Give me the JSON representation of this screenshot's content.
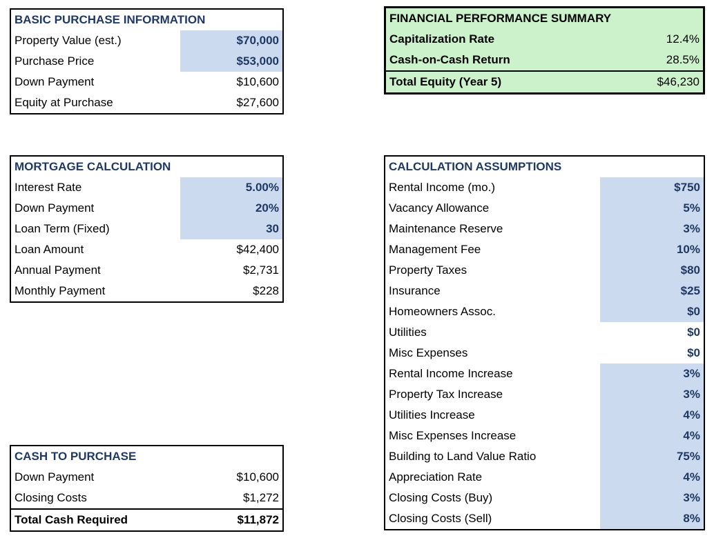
{
  "colors": {
    "navy_text": "#1f3864",
    "input_highlight_blue": "#cbdaee",
    "summary_green": "#ccf2cc",
    "border_black": "#000000"
  },
  "panels": {
    "basic_purchase": {
      "title": "BASIC PURCHASE INFORMATION",
      "rows": [
        {
          "label": "Property Value (est.)",
          "value": "$70,000",
          "highlight": true
        },
        {
          "label": "Purchase Price",
          "value": "$53,000",
          "highlight": true
        },
        {
          "label": "Down Payment",
          "value": "$10,600"
        },
        {
          "label": "Equity at Purchase",
          "value": "$27,600"
        }
      ]
    },
    "financial_summary": {
      "title": "FINANCIAL PERFORMANCE SUMMARY",
      "rows": [
        {
          "label": "Capitalization Rate",
          "value": "12.4%",
          "label_bold": true
        },
        {
          "label": "Cash-on-Cash Return",
          "value": "28.5%",
          "label_bold": true
        },
        {
          "label": "Total Equity (Year 5)",
          "value": "$46,230",
          "label_bold": true,
          "total": true
        }
      ]
    },
    "mortgage_calculation": {
      "title": "MORTGAGE CALCULATION",
      "rows": [
        {
          "label": "Interest Rate",
          "value": "5.00%",
          "highlight": true
        },
        {
          "label": "Down Payment",
          "value": "20%",
          "highlight": true
        },
        {
          "label": "Loan Term (Fixed)",
          "value": "30",
          "highlight": true
        },
        {
          "label": "Loan Amount",
          "value": "$42,400"
        },
        {
          "label": "Annual Payment",
          "value": "$2,731"
        },
        {
          "label": "Monthly Payment",
          "value": "$228"
        }
      ]
    },
    "calculation_assumptions": {
      "title": "CALCULATION ASSUMPTIONS",
      "rows": [
        {
          "label": "Rental Income (mo.)",
          "value": "$750",
          "highlight": true
        },
        {
          "label": "Vacancy Allowance",
          "value": "5%",
          "highlight": true
        },
        {
          "label": "Maintenance Reserve",
          "value": "3%",
          "highlight": true
        },
        {
          "label": "Management Fee",
          "value": "10%",
          "highlight": true
        },
        {
          "label": "Property Taxes",
          "value": "$80",
          "highlight": true
        },
        {
          "label": "Insurance",
          "value": "$25",
          "highlight": true
        },
        {
          "label": "Homeowners Assoc.",
          "value": "$0",
          "highlight": true
        },
        {
          "label": "Utilities",
          "value": "$0",
          "value_navy_bold": true
        },
        {
          "label": "Misc Expenses",
          "value": "$0",
          "value_navy_bold": true
        },
        {
          "label": "Rental Income Increase",
          "value": "3%",
          "highlight": true
        },
        {
          "label": "Property Tax Increase",
          "value": "3%",
          "highlight": true
        },
        {
          "label": "Utilities Increase",
          "value": "4%",
          "highlight": true
        },
        {
          "label": "Misc Expenses Increase",
          "value": "4%",
          "highlight": true
        },
        {
          "label": "Building to Land Value Ratio",
          "value": "75%",
          "highlight": true
        },
        {
          "label": "Appreciation Rate",
          "value": "4%",
          "highlight": true
        },
        {
          "label": "Closing Costs (Buy)",
          "value": "3%",
          "highlight": true
        },
        {
          "label": "Closing Costs (Sell)",
          "value": "8%",
          "highlight": true
        }
      ]
    },
    "cash_to_purchase": {
      "title": "CASH TO PURCHASE",
      "rows": [
        {
          "label": "Down Payment",
          "value": "$10,600"
        },
        {
          "label": "Closing Costs",
          "value": "$1,272"
        },
        {
          "label": "Total Cash Required",
          "value": "$11,872",
          "label_bold": true,
          "value_bold": true,
          "total": true
        }
      ]
    }
  }
}
